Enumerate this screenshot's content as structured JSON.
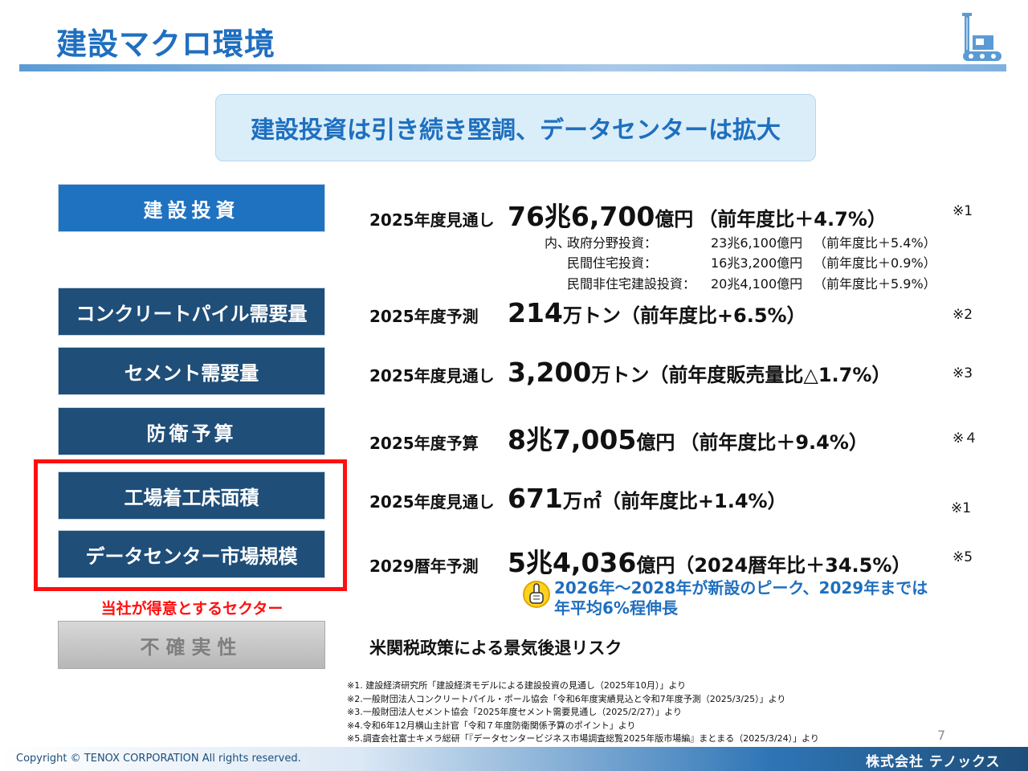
{
  "header": {
    "title": "建設マクロ環境"
  },
  "headline": "建設投資は引き続き堅調、データセンターは拡大",
  "rows": [
    {
      "tag": "建設投資",
      "label": "2025年度見通し",
      "value_num": "76兆6,700",
      "value_unit": "億円",
      "change": "（前年度比＋4.7%）",
      "note": "※1"
    },
    {
      "tag": "コンクリートパイル需要量",
      "label": "2025年度予測",
      "value_num": "214",
      "value_unit": "万トン",
      "change": "（前年度比+6.5%）",
      "note": "※2"
    },
    {
      "tag": "セメント需要量",
      "label": "2025年度見通し",
      "value_num": "3,200",
      "value_unit": "万トン",
      "change": "（前年度販売量比△1.7%）",
      "note": "※3"
    },
    {
      "tag": "防衛予算",
      "label": "2025年度予算",
      "value_num": "8兆7,005",
      "value_unit": "億円",
      "change": "（前年度比＋9.4%）",
      "note": "※４"
    },
    {
      "tag": "工場着工床面積",
      "label": "2025年度見通し",
      "value_num": "671",
      "value_unit": "万㎡",
      "change": "（前年度比+1.4%）",
      "note": "※1"
    },
    {
      "tag": "データセンター市場規模",
      "label": "2029暦年予測",
      "value_num": "5兆4,036",
      "value_unit": "億円",
      "change": "（2024暦年比＋34.5%）",
      "note": "※5"
    },
    {
      "tag": "不確実性",
      "label": "米関税政策による景気後退リスク"
    }
  ],
  "breakdown": [
    {
      "prefix": "内、",
      "name": "政府分野投資：",
      "amount": "23兆6,100億円",
      "change": "（前年度比＋5.4%）"
    },
    {
      "prefix": "",
      "name": "民間住宅投資：",
      "amount": "16兆3,200億円",
      "change": "（前年度比＋0.9%）"
    },
    {
      "prefix": "",
      "name": "民間非住宅建設投資：",
      "amount": "20兆4,100億円",
      "change": "（前年度比＋5.9%）"
    }
  ],
  "highlight_label": "当社が得意とするセクター",
  "dc_note_line1": "2026年～2028年が新設のピーク、2029年までは",
  "dc_note_line2": "年平均6%程伸長",
  "footnotes": [
    "※1. 建設経済研究所「建設経済モデルによる建設投資の見通し（2025年10月）」より",
    "※2.一般財団法人コンクリートパイル・ポール協会「令和6年度実績見込と令和7年度予測（2025/3/25）」より",
    "※3.一般財団法人セメント協会「2025年度セメント需要見通し（2025/2/27）」より",
    "※4.令和6年12月横山主計官「令和７年度防衛関係予算のポイント」より",
    "※5.調査会社富士キメラ総研「『データセンタービジネス市場調査総覧2025年版市場編』まとまる（2025/3/24）」より"
  ],
  "page_number": "7",
  "footer": {
    "copyright": "Copyright © TENOX CORPORATION All rights reserved.",
    "company": "株式会社 テノックス"
  },
  "colors": {
    "accent": "#1f6fbf",
    "tag_dark": "#1f4e79",
    "highlight_red": "#ff1010"
  },
  "icons": [
    "crane-logo-icon",
    "pointing-hand-icon"
  ]
}
